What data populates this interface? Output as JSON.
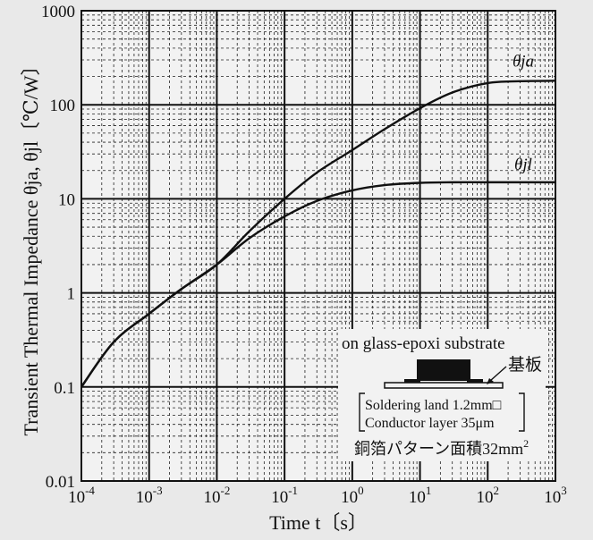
{
  "chart_data": {
    "type": "line",
    "x_scale": "log",
    "y_scale": "log",
    "xlim": [
      0.0001,
      1000
    ],
    "ylim": [
      0.01,
      1000
    ],
    "xlabel": "Time t〔s〕",
    "ylabel": "Transient Thermal Impedance θja, θjl〔℃/W〕",
    "grid": true,
    "x_ticks": [
      {
        "base": "10",
        "exp": "-4"
      },
      {
        "base": "10",
        "exp": "-3"
      },
      {
        "base": "10",
        "exp": "-2"
      },
      {
        "base": "10",
        "exp": "-1"
      },
      {
        "base": "10",
        "exp": "0"
      },
      {
        "base": "10",
        "exp": "1"
      },
      {
        "base": "10",
        "exp": "2"
      },
      {
        "base": "10",
        "exp": "3"
      }
    ],
    "y_ticks": [
      "0.01",
      "0.1",
      "1",
      "10",
      "100",
      "1000"
    ],
    "series": [
      {
        "name": "θja",
        "x": [
          0.0001,
          0.0003,
          0.001,
          0.003,
          0.01,
          0.03,
          0.1,
          0.3,
          1,
          3,
          10,
          30,
          100,
          300,
          1000
        ],
        "y": [
          0.1,
          0.3,
          0.6,
          1.1,
          2.0,
          4.5,
          10,
          19,
          33,
          55,
          92,
          135,
          170,
          178,
          180
        ]
      },
      {
        "name": "θjl",
        "x": [
          0.0001,
          0.0003,
          0.001,
          0.003,
          0.01,
          0.03,
          0.1,
          0.3,
          1,
          3,
          10,
          30,
          100,
          300,
          1000
        ],
        "y": [
          0.1,
          0.3,
          0.6,
          1.1,
          2.0,
          3.8,
          6.5,
          9.5,
          12.3,
          14,
          14.8,
          15,
          15,
          15,
          15
        ]
      }
    ],
    "annotations": {
      "substrate": "on glass-epoxi substrate",
      "board": "基板",
      "land": "Soldering land 1.2mm□",
      "conductor": "Conductor layer 35μm",
      "area_text": "銅箔パターン面積32mm",
      "area_sup": "2"
    }
  }
}
